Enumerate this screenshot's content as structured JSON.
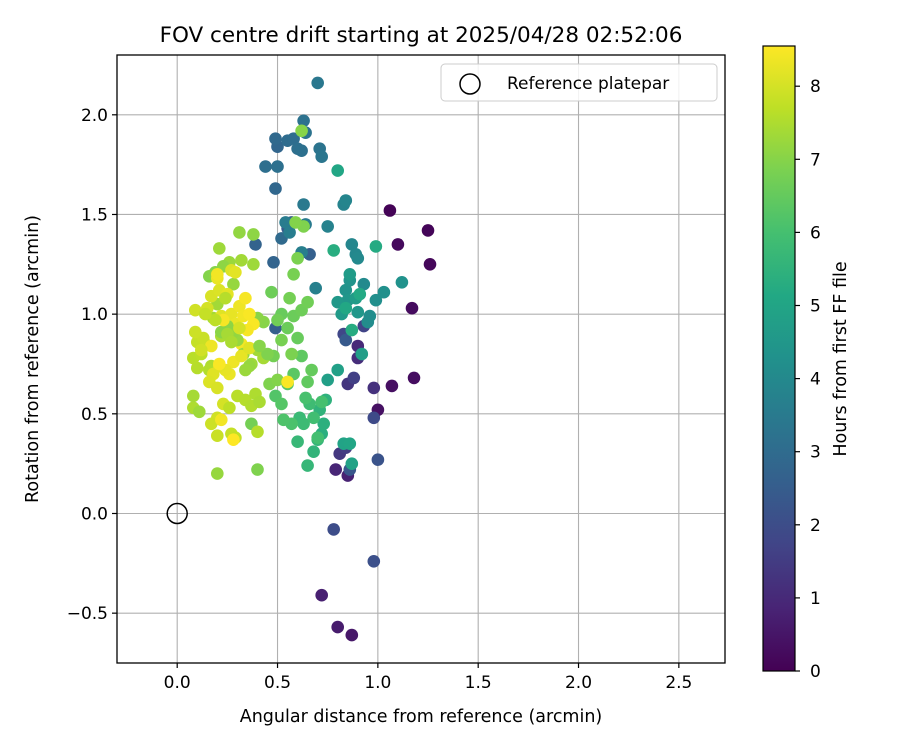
{
  "chart_data": {
    "type": "scatter",
    "title": "FOV centre drift starting at 2025/04/28 02:52:06",
    "xlabel": "Angular distance from reference (arcmin)",
    "ylabel": "Rotation from reference (arcmin)",
    "xlim": [
      -0.3,
      2.73
    ],
    "ylim": [
      -0.75,
      2.3
    ],
    "xticks": [
      0.0,
      0.5,
      1.0,
      1.5,
      2.0,
      2.5
    ],
    "xtick_labels": [
      "0.0",
      "0.5",
      "1.0",
      "1.5",
      "2.0",
      "2.5"
    ],
    "yticks": [
      -0.5,
      0.0,
      0.5,
      1.0,
      1.5,
      2.0
    ],
    "ytick_labels": [
      "−0.5",
      "0.0",
      "0.5",
      "1.0",
      "1.5",
      "2.0"
    ],
    "grid": true,
    "legend": {
      "placement": "top-right",
      "label": "Reference platepar",
      "marker": "open-circle"
    },
    "reference_point": {
      "x": 0.0,
      "y": 0.0
    },
    "colorbar": {
      "label": "Hours from first FF file",
      "min": 0,
      "max": 8.55,
      "ticks": [
        0,
        1,
        2,
        3,
        4,
        5,
        6,
        7,
        8
      ],
      "tick_labels": [
        "0",
        "1",
        "2",
        "3",
        "4",
        "5",
        "6",
        "7",
        "8"
      ],
      "colormap": "viridis"
    },
    "series": [
      {
        "points": [
          [
            1.06,
            1.52,
            0.05
          ],
          [
            1.25,
            1.42,
            0.1
          ],
          [
            1.26,
            1.25,
            0.15
          ],
          [
            1.1,
            1.35,
            0.2
          ],
          [
            1.17,
            1.03,
            0.25
          ],
          [
            1.18,
            0.68,
            0.3
          ],
          [
            1.07,
            0.64,
            0.35
          ],
          [
            1.0,
            0.52,
            0.4
          ],
          [
            0.87,
            -0.61,
            0.55
          ],
          [
            0.8,
            -0.57,
            0.65
          ],
          [
            0.72,
            -0.41,
            0.75
          ],
          [
            0.85,
            0.19,
            0.8
          ],
          [
            0.79,
            0.22,
            0.9
          ],
          [
            0.9,
            0.84,
            1.0
          ],
          [
            0.9,
            0.78,
            1.1
          ],
          [
            0.98,
            0.63,
            1.2
          ],
          [
            0.85,
            0.65,
            1.3
          ],
          [
            0.81,
            0.3,
            1.4
          ],
          [
            0.84,
            0.33,
            1.5
          ],
          [
            0.88,
            0.68,
            1.6
          ],
          [
            0.93,
            0.94,
            1.7
          ],
          [
            0.83,
            0.9,
            1.8
          ],
          [
            0.98,
            0.48,
            1.9
          ],
          [
            0.78,
            -0.08,
            2.0
          ],
          [
            0.98,
            -0.24,
            2.1
          ],
          [
            1.0,
            0.27,
            2.2
          ],
          [
            0.86,
            0.22,
            2.3
          ],
          [
            0.84,
            0.87,
            2.4
          ],
          [
            0.55,
            1.43,
            2.45
          ],
          [
            0.57,
            1.46,
            2.5
          ],
          [
            0.49,
            0.93,
            2.55
          ],
          [
            0.66,
            1.3,
            2.6
          ],
          [
            0.39,
            1.35,
            2.7
          ],
          [
            0.48,
            1.26,
            2.75
          ],
          [
            0.5,
            1.84,
            2.8
          ],
          [
            0.49,
            1.63,
            2.85
          ],
          [
            0.49,
            1.88,
            2.9
          ],
          [
            0.52,
            1.38,
            2.95
          ],
          [
            0.55,
            1.87,
            3.0
          ],
          [
            0.58,
            1.88,
            3.05
          ],
          [
            0.6,
            1.83,
            3.1
          ],
          [
            0.62,
            1.82,
            3.15
          ],
          [
            0.63,
            1.97,
            3.2
          ],
          [
            0.64,
            1.91,
            3.25
          ],
          [
            0.71,
            1.83,
            3.3
          ],
          [
            0.72,
            1.79,
            3.35
          ],
          [
            0.44,
            1.74,
            3.1
          ],
          [
            0.5,
            1.74,
            3.15
          ],
          [
            0.7,
            2.16,
            3.4
          ],
          [
            0.63,
            1.55,
            3.45
          ],
          [
            0.64,
            1.45,
            3.5
          ],
          [
            0.54,
            1.46,
            3.55
          ],
          [
            0.56,
            1.41,
            3.6
          ],
          [
            0.62,
            1.31,
            3.65
          ],
          [
            0.69,
            1.13,
            3.7
          ],
          [
            0.75,
            1.44,
            3.75
          ],
          [
            0.83,
            1.55,
            3.8
          ],
          [
            0.84,
            1.57,
            3.85
          ],
          [
            0.87,
            1.35,
            3.9
          ],
          [
            0.89,
            1.3,
            3.95
          ],
          [
            0.9,
            1.28,
            4.0
          ],
          [
            0.93,
            1.15,
            4.05
          ],
          [
            0.95,
            0.96,
            4.1
          ],
          [
            0.96,
            0.99,
            4.15
          ],
          [
            0.99,
            1.07,
            4.2
          ],
          [
            1.03,
            1.11,
            4.25
          ],
          [
            1.12,
            1.16,
            4.3
          ],
          [
            0.84,
            1.12,
            4.35
          ],
          [
            0.86,
            1.17,
            4.4
          ],
          [
            0.85,
            1.07,
            4.45
          ],
          [
            0.9,
            1.01,
            4.5
          ],
          [
            0.8,
            1.06,
            4.55
          ],
          [
            0.82,
            1.0,
            4.6
          ],
          [
            0.86,
            1.2,
            4.65
          ],
          [
            0.89,
            1.08,
            4.7
          ],
          [
            0.92,
            0.8,
            4.75
          ],
          [
            0.75,
            0.67,
            4.8
          ],
          [
            0.8,
            0.72,
            4.85
          ],
          [
            0.87,
            0.25,
            4.9
          ],
          [
            0.83,
            0.35,
            4.95
          ],
          [
            0.86,
            0.35,
            5.0
          ],
          [
            0.8,
            1.72,
            5.05
          ],
          [
            0.84,
            1.03,
            5.1
          ],
          [
            0.91,
            1.1,
            5.15
          ],
          [
            0.99,
            1.34,
            5.2
          ],
          [
            0.87,
            0.92,
            5.25
          ],
          [
            0.78,
            1.32,
            5.3
          ],
          [
            0.72,
            0.4,
            5.35
          ],
          [
            0.73,
            0.45,
            5.4
          ],
          [
            0.74,
            0.57,
            5.45
          ],
          [
            0.71,
            0.52,
            5.5
          ],
          [
            0.68,
            0.31,
            5.55
          ],
          [
            0.7,
            0.37,
            5.6
          ],
          [
            0.65,
            0.24,
            5.65
          ],
          [
            0.6,
            0.36,
            5.7
          ],
          [
            0.61,
            0.48,
            5.75
          ],
          [
            0.63,
            0.45,
            5.8
          ],
          [
            0.66,
            0.55,
            5.85
          ],
          [
            0.68,
            0.48,
            5.9
          ],
          [
            0.7,
            0.38,
            5.95
          ],
          [
            0.72,
            0.56,
            6.0
          ],
          [
            0.64,
            0.58,
            6.05
          ],
          [
            0.57,
            0.45,
            6.1
          ],
          [
            0.53,
            0.47,
            6.15
          ],
          [
            0.49,
            0.59,
            6.2
          ],
          [
            0.52,
            0.55,
            6.25
          ],
          [
            0.55,
            0.65,
            6.3
          ],
          [
            0.58,
            0.7,
            6.35
          ],
          [
            0.62,
            0.79,
            6.4
          ],
          [
            0.65,
            0.66,
            6.45
          ],
          [
            0.67,
            0.72,
            6.5
          ],
          [
            0.6,
            0.88,
            6.55
          ],
          [
            0.58,
            0.99,
            6.6
          ],
          [
            0.62,
            1.02,
            6.65
          ],
          [
            0.65,
            1.06,
            6.7
          ],
          [
            0.56,
            1.08,
            6.75
          ],
          [
            0.58,
            1.2,
            6.8
          ],
          [
            0.6,
            1.28,
            6.85
          ],
          [
            0.63,
            1.44,
            6.9
          ],
          [
            0.59,
            1.46,
            6.95
          ],
          [
            0.62,
            1.92,
            7.0
          ],
          [
            0.52,
            1.0,
            6.55
          ],
          [
            0.55,
            0.93,
            6.6
          ],
          [
            0.47,
            1.11,
            6.65
          ],
          [
            0.5,
            0.97,
            6.7
          ],
          [
            0.48,
            0.79,
            6.75
          ],
          [
            0.52,
            0.87,
            6.8
          ],
          [
            0.57,
            0.8,
            6.85
          ],
          [
            0.46,
            0.65,
            6.9
          ],
          [
            0.5,
            0.67,
            6.95
          ],
          [
            0.43,
            0.96,
            7.0
          ],
          [
            0.4,
            0.98,
            7.05
          ],
          [
            0.38,
            1.4,
            7.1
          ],
          [
            0.31,
            1.41,
            7.15
          ],
          [
            0.28,
            1.15,
            7.2
          ],
          [
            0.26,
            1.26,
            7.25
          ],
          [
            0.21,
            1.33,
            7.3
          ],
          [
            0.2,
            1.05,
            7.35
          ],
          [
            0.18,
            0.98,
            7.4
          ],
          [
            0.22,
            0.89,
            7.45
          ],
          [
            0.17,
            0.74,
            7.5
          ],
          [
            0.16,
            0.72,
            7.55
          ],
          [
            0.1,
            0.73,
            7.6
          ],
          [
            0.08,
            0.78,
            7.65
          ],
          [
            0.12,
            0.8,
            7.7
          ],
          [
            0.14,
            0.85,
            7.75
          ],
          [
            0.1,
            0.86,
            7.8
          ],
          [
            0.13,
            0.88,
            7.85
          ],
          [
            0.09,
            0.91,
            7.9
          ],
          [
            0.09,
            1.02,
            7.95
          ],
          [
            0.15,
            1.03,
            8.0
          ],
          [
            0.17,
            1.09,
            8.05
          ],
          [
            0.21,
            1.12,
            8.1
          ],
          [
            0.22,
            0.99,
            8.15
          ],
          [
            0.25,
            1.1,
            8.2
          ],
          [
            0.27,
            1.0,
            8.25
          ],
          [
            0.29,
            0.95,
            8.3
          ],
          [
            0.31,
            1.04,
            8.35
          ],
          [
            0.33,
            0.99,
            8.4
          ],
          [
            0.34,
            1.08,
            8.45
          ],
          [
            0.36,
            1.0,
            8.5
          ],
          [
            0.38,
            0.95,
            8.5
          ],
          [
            0.35,
            0.92,
            8.45
          ],
          [
            0.32,
            0.85,
            8.4
          ],
          [
            0.28,
            0.76,
            8.35
          ],
          [
            0.26,
            0.7,
            8.3
          ],
          [
            0.24,
            0.72,
            8.25
          ],
          [
            0.21,
            0.74,
            8.2
          ],
          [
            0.18,
            0.7,
            8.15
          ],
          [
            0.16,
            0.66,
            8.1
          ],
          [
            0.2,
            0.63,
            8.05
          ],
          [
            0.23,
            0.55,
            8.0
          ],
          [
            0.2,
            0.48,
            7.95
          ],
          [
            0.17,
            0.45,
            7.9
          ],
          [
            0.2,
            0.39,
            7.85
          ],
          [
            0.27,
            0.4,
            7.8
          ],
          [
            0.29,
            0.38,
            7.75
          ],
          [
            0.26,
            0.53,
            7.7
          ],
          [
            0.3,
            0.59,
            7.65
          ],
          [
            0.34,
            0.57,
            7.6
          ],
          [
            0.37,
            0.54,
            7.55
          ],
          [
            0.39,
            0.6,
            7.5
          ],
          [
            0.41,
            0.56,
            7.45
          ],
          [
            0.43,
            0.78,
            7.4
          ],
          [
            0.4,
            0.82,
            7.35
          ],
          [
            0.37,
            0.75,
            7.3
          ],
          [
            0.33,
            0.8,
            7.25
          ],
          [
            0.3,
            0.87,
            7.2
          ],
          [
            0.28,
            0.91,
            7.15
          ],
          [
            0.25,
            0.94,
            7.1
          ],
          [
            0.22,
            0.91,
            7.05
          ],
          [
            0.19,
            1.21,
            7.0
          ],
          [
            0.16,
            1.19,
            6.95
          ],
          [
            0.19,
            1.19,
            7.05
          ],
          [
            0.23,
            1.24,
            7.1
          ],
          [
            0.38,
            1.25,
            7.3
          ],
          [
            0.32,
            1.27,
            7.35
          ],
          [
            0.27,
            1.22,
            8.1
          ],
          [
            0.29,
            1.21,
            8.2
          ],
          [
            0.2,
            1.18,
            8.3
          ],
          [
            0.2,
            1.2,
            8.4
          ],
          [
            0.23,
            0.97,
            8.45
          ],
          [
            0.21,
            0.75,
            8.5
          ],
          [
            0.17,
            0.84,
            8.35
          ],
          [
            0.32,
            0.79,
            8.25
          ],
          [
            0.36,
            0.83,
            8.15
          ],
          [
            0.31,
            0.93,
            8.0
          ],
          [
            0.08,
            0.53,
            7.5
          ],
          [
            0.08,
            0.59,
            7.4
          ],
          [
            0.11,
            0.51,
            7.3
          ],
          [
            0.2,
            0.2,
            7.2
          ],
          [
            0.4,
            0.22,
            6.9
          ],
          [
            0.37,
            0.45,
            6.75
          ],
          [
            0.4,
            0.41,
            7.6
          ],
          [
            0.28,
            0.37,
            8.55
          ],
          [
            0.22,
            0.47,
            8.4
          ],
          [
            0.55,
            0.66,
            8.5
          ],
          [
            0.45,
            0.8,
            6.9
          ],
          [
            0.41,
            0.84,
            7.0
          ],
          [
            0.36,
            0.74,
            7.2
          ],
          [
            0.34,
            0.72,
            7.25
          ],
          [
            0.25,
            0.9,
            7.4
          ],
          [
            0.27,
            0.86,
            7.45
          ],
          [
            0.24,
            1.08,
            7.6
          ],
          [
            0.19,
            0.97,
            7.7
          ],
          [
            0.14,
            1.0,
            7.8
          ],
          [
            0.12,
            0.82,
            7.95
          ]
        ]
      }
    ]
  }
}
